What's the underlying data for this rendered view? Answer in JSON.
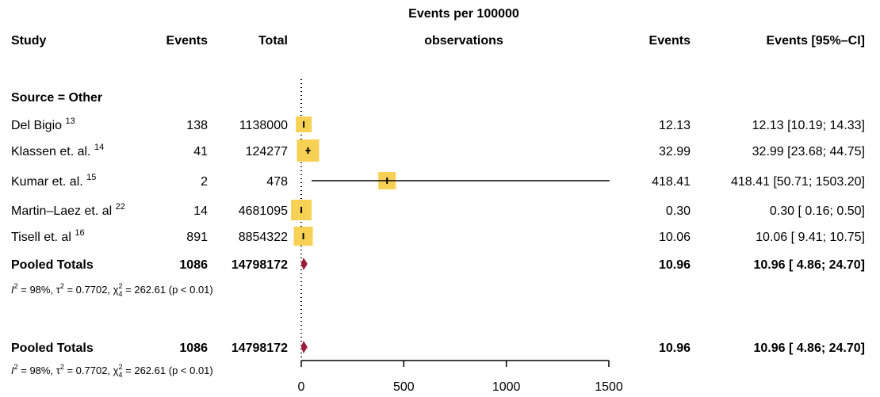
{
  "chart_data": {
    "type": "forest",
    "xlim": [
      0,
      1500
    ],
    "xticks": [
      0,
      500,
      1000,
      1500
    ],
    "reference_line": 0,
    "colors": {
      "box": "#F7D154",
      "diamond": "#9C1B3A",
      "line": "#000000"
    },
    "headers": {
      "study": "Study",
      "events": "Events",
      "total": "Total",
      "plot_title_line1": "Events per 100000",
      "plot_title_line2": "observations",
      "rate": "Events",
      "ci": "Events [95%–CI]"
    },
    "subgroup_label": "Source = Other",
    "studies": [
      {
        "name": "Del Bigio",
        "ref": "13",
        "events": "138",
        "total": "1138000",
        "rate": 12.13,
        "lower": 10.19,
        "upper": 14.33,
        "rate_text": "12.13",
        "ci_text": "12.13 [10.19;  14.33]"
      },
      {
        "name": "Klassen et. al.",
        "ref": "14",
        "events": "41",
        "total": "124277",
        "rate": 32.99,
        "lower": 23.68,
        "upper": 44.75,
        "rate_text": "32.99",
        "ci_text": "32.99 [23.68;  44.75]"
      },
      {
        "name": "Kumar et. al.",
        "ref": "15",
        "events": "2",
        "total": "478",
        "rate": 418.41,
        "lower": 50.71,
        "upper": 1503.2,
        "rate_text": "418.41",
        "ci_text": "418.41 [50.71; 1503.20]"
      },
      {
        "name": "Martin–Laez et. al",
        "ref": "22",
        "events": "14",
        "total": "4681095",
        "rate": 0.3,
        "lower": 0.16,
        "upper": 0.5,
        "rate_text": "0.30",
        "ci_text": "0.30 [ 0.16;   0.50]"
      },
      {
        "name": "Tisell et. al",
        "ref": "16",
        "events": "891",
        "total": "8854322",
        "rate": 10.06,
        "lower": 9.41,
        "upper": 10.75,
        "rate_text": "10.06",
        "ci_text": "10.06 [ 9.41;  10.75]"
      }
    ],
    "pooled": [
      {
        "name": "Pooled Totals",
        "events": "1086",
        "total": "14798172",
        "rate": 10.96,
        "lower": 4.86,
        "upper": 24.7,
        "rate_text": "10.96",
        "ci_text": "10.96 [ 4.86;  24.70]"
      },
      {
        "name": "Pooled Totals",
        "events": "1086",
        "total": "14798172",
        "rate": 10.96,
        "lower": 4.86,
        "upper": 24.7,
        "rate_text": "10.96",
        "ci_text": "10.96 [ 4.86;  24.70]"
      }
    ],
    "heterogeneity": {
      "i2_symbol": "I",
      "i2_value": "= 98%,",
      "tau2_symbol": "τ",
      "tau2_value": "= 0.7702,",
      "chi2_symbol": "χ",
      "chi2_df": "4",
      "chi2_value": "= 262.61",
      "p_text": "(p < 0.01)"
    }
  }
}
